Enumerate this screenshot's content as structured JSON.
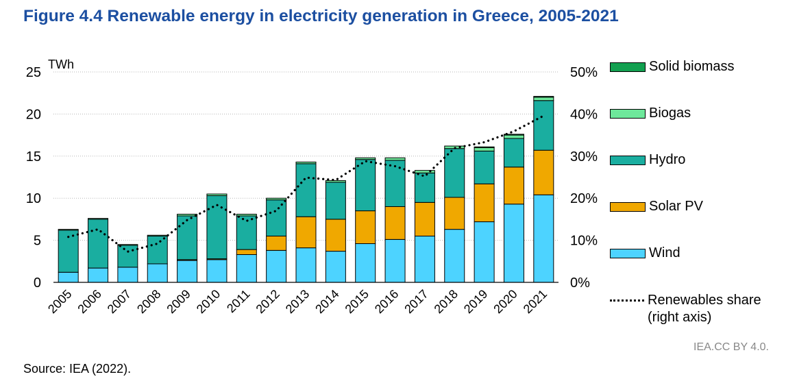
{
  "title": "Figure 4.4 Renewable energy in electricity generation in Greece, 2005-2021",
  "source": "Source: IEA (2022).",
  "credit": "IEA.CC BY 4.0.",
  "chart_data": {
    "type": "bar",
    "stacked": true,
    "left_unit": "TWh",
    "ylim": [
      0,
      25
    ],
    "yticks": [
      "0",
      "5",
      "10",
      "15",
      "20",
      "25"
    ],
    "y2lim": [
      0,
      50
    ],
    "y2ticks": [
      "0%",
      "10%",
      "20%",
      "30%",
      "40%",
      "50%"
    ],
    "grid": "horizontal dotted",
    "legend_position": "right",
    "categories": [
      "2005",
      "2006",
      "2007",
      "2008",
      "2009",
      "2010",
      "2011",
      "2012",
      "2013",
      "2014",
      "2015",
      "2016",
      "2017",
      "2018",
      "2019",
      "2020",
      "2021"
    ],
    "series": [
      {
        "name": "Wind",
        "color": "#4dd3ff",
        "values": [
          1.2,
          1.7,
          1.8,
          2.2,
          2.6,
          2.7,
          3.3,
          3.8,
          4.1,
          3.7,
          4.6,
          5.1,
          5.5,
          6.3,
          7.2,
          9.3,
          10.4
        ]
      },
      {
        "name": "Solar PV",
        "color": "#f0a800",
        "values": [
          0.0,
          0.0,
          0.0,
          0.0,
          0.1,
          0.1,
          0.6,
          1.7,
          3.7,
          3.8,
          3.9,
          3.9,
          4.0,
          3.8,
          4.5,
          4.4,
          5.3
        ]
      },
      {
        "name": "Hydro",
        "color": "#1aaea0",
        "values": [
          5.0,
          5.8,
          2.6,
          3.3,
          5.2,
          7.5,
          4.0,
          4.3,
          6.3,
          4.4,
          6.1,
          5.5,
          3.5,
          5.8,
          3.9,
          3.4,
          5.9
        ]
      },
      {
        "name": "Biogas",
        "color": "#6ee89b",
        "values": [
          0.1,
          0.1,
          0.1,
          0.1,
          0.2,
          0.2,
          0.2,
          0.2,
          0.2,
          0.2,
          0.2,
          0.3,
          0.3,
          0.3,
          0.4,
          0.4,
          0.4
        ]
      },
      {
        "name": "Solid biomass",
        "color": "#12a050",
        "values": [
          0.0,
          0.0,
          0.0,
          0.0,
          0.0,
          0.0,
          0.0,
          0.0,
          0.0,
          0.0,
          0.0,
          0.0,
          0.0,
          0.0,
          0.1,
          0.1,
          0.1
        ]
      }
    ],
    "line": {
      "name": "Renewables share",
      "axis": "right",
      "values": [
        10.8,
        12.6,
        7.3,
        9.2,
        14.8,
        18.4,
        14.6,
        17.0,
        24.9,
        24.3,
        28.8,
        27.6,
        25.2,
        31.9,
        33.3,
        35.9,
        39.6
      ]
    }
  },
  "legend_labels": {
    "solid_biomass": "Solid biomass",
    "biogas": "Biogas",
    "hydro": "Hydro",
    "solar": "Solar PV",
    "wind": "Wind",
    "share_line1": "Renewables share",
    "share_line2": "(right axis)"
  }
}
